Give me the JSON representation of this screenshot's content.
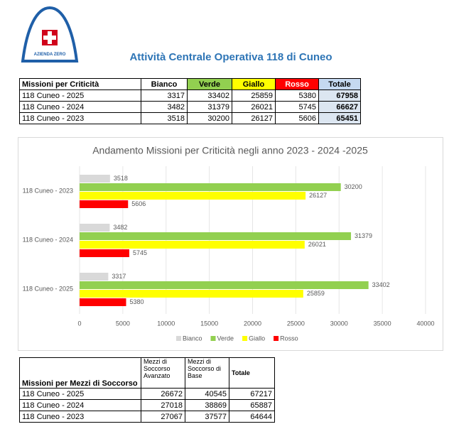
{
  "logo": {
    "text": "AZIENDA ZERO"
  },
  "header": {
    "title": "Attività Centrale Operativa 118 di Cuneo"
  },
  "table1": {
    "columns": [
      "Missioni per Criticità",
      "Bianco",
      "Verde",
      "Giallo",
      "Rosso",
      "Totale"
    ],
    "rows": [
      [
        "118 Cuneo - 2025",
        3317,
        33402,
        25859,
        5380,
        67958
      ],
      [
        "118 Cuneo - 2024",
        3482,
        31379,
        26021,
        5745,
        66627
      ],
      [
        "118 Cuneo - 2023",
        3518,
        30200,
        26127,
        5606,
        65451
      ]
    ]
  },
  "chart_data": {
    "type": "hbar",
    "title": "Andamento Missioni per Criticità negli anno 2023 - 2024 -2025",
    "categories": [
      "118 Cuneo - 2023",
      "118 Cuneo - 2024",
      "118 Cuneo - 2025"
    ],
    "series": [
      {
        "name": "Bianco",
        "color": "#d9d9d9",
        "values": [
          3518,
          3482,
          3317
        ]
      },
      {
        "name": "Verde",
        "color": "#92d050",
        "values": [
          30200,
          31379,
          33402
        ]
      },
      {
        "name": "Giallo",
        "color": "#ffff00",
        "values": [
          26127,
          26021,
          25859
        ]
      },
      {
        "name": "Rosso",
        "color": "#ff0000",
        "values": [
          5606,
          5745,
          5380
        ]
      }
    ],
    "xlim": [
      0,
      40000
    ],
    "xticks": [
      0,
      5000,
      10000,
      15000,
      20000,
      25000,
      30000,
      35000,
      40000
    ],
    "grid": true,
    "legend": "bottom"
  },
  "table2": {
    "columns": [
      "Missioni per Mezzi di Soccorso",
      "Mezzi di Soccorso Avanzato",
      "Mezzi di Soccorso di Base",
      "Totale"
    ],
    "rows": [
      [
        "118 Cuneo - 2025",
        26672,
        40545,
        67217
      ],
      [
        "118 Cuneo - 2024",
        27018,
        38869,
        65887
      ],
      [
        "118 Cuneo - 2023",
        27067,
        37577,
        64644
      ]
    ]
  }
}
